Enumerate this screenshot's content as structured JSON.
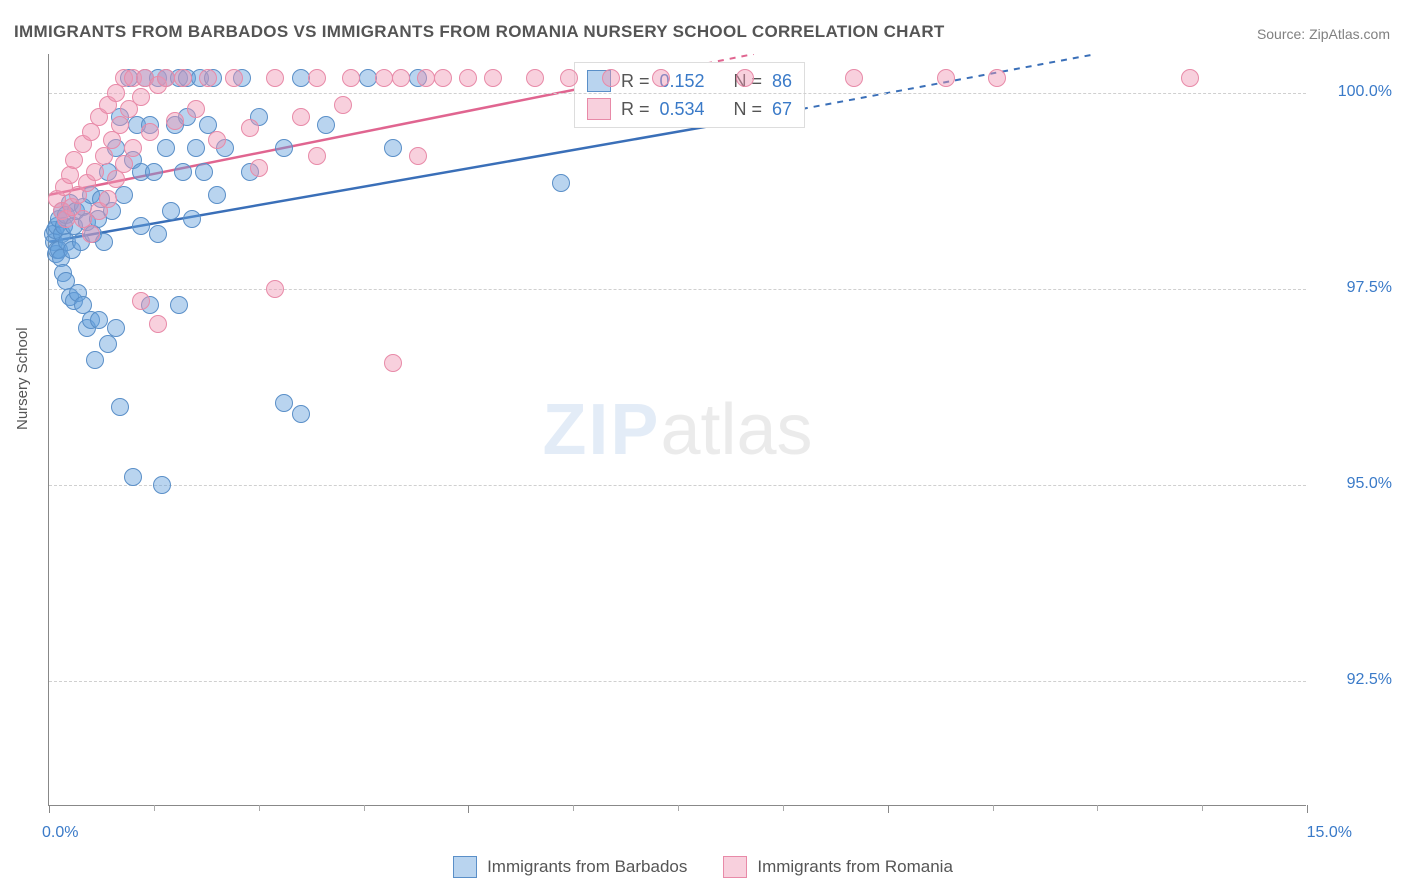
{
  "chart": {
    "type": "scatter",
    "title": "IMMIGRANTS FROM BARBADOS VS IMMIGRANTS FROM ROMANIA NURSERY SCHOOL CORRELATION CHART",
    "source": "Source: ZipAtlas.com",
    "ylabel": "Nursery School",
    "watermark_zip": "ZIP",
    "watermark_atlas": "atlas",
    "background_color": "#ffffff",
    "grid_color": "#d0d0d0",
    "axis_color": "#888888",
    "xlim": [
      0.0,
      15.0
    ],
    "ylim": [
      90.9,
      100.5
    ],
    "xlim_labels": [
      "0.0%",
      "15.0%"
    ],
    "yticks": [
      92.5,
      95.0,
      97.5,
      100.0
    ],
    "ytick_labels": [
      "92.5%",
      "95.0%",
      "97.5%",
      "100.0%"
    ],
    "xtick_positions": [
      0,
      1.25,
      2.5,
      3.75,
      5.0,
      6.25,
      7.5,
      8.75,
      10.0,
      11.25,
      12.5,
      13.75,
      15.0
    ],
    "xtick_major": [
      0,
      5.0,
      10.0,
      15.0
    ],
    "series": [
      {
        "name": "Immigrants from Barbados",
        "fill_color": "rgba(100,160,220,0.45)",
        "stroke_color": "#5a8fc8",
        "line_color": "#3a6fb8",
        "R": "0.152",
        "N": "86",
        "trend": {
          "x1": 0.0,
          "y1": 98.1,
          "x2": 8.0,
          "y2": 99.6,
          "x2_ext": 15.0,
          "y2_ext": 101.0
        },
        "points": [
          [
            0.05,
            98.2
          ],
          [
            0.06,
            98.1
          ],
          [
            0.07,
            98.25
          ],
          [
            0.08,
            97.95
          ],
          [
            0.1,
            98.0
          ],
          [
            0.1,
            98.3
          ],
          [
            0.12,
            98.4
          ],
          [
            0.12,
            98.0
          ],
          [
            0.14,
            97.9
          ],
          [
            0.15,
            98.2
          ],
          [
            0.15,
            98.5
          ],
          [
            0.17,
            97.7
          ],
          [
            0.18,
            98.3
          ],
          [
            0.2,
            98.45
          ],
          [
            0.2,
            97.6
          ],
          [
            0.22,
            98.1
          ],
          [
            0.25,
            98.6
          ],
          [
            0.25,
            97.4
          ],
          [
            0.27,
            98.0
          ],
          [
            0.3,
            98.3
          ],
          [
            0.3,
            97.35
          ],
          [
            0.32,
            98.5
          ],
          [
            0.35,
            97.45
          ],
          [
            0.38,
            98.1
          ],
          [
            0.4,
            97.3
          ],
          [
            0.4,
            98.55
          ],
          [
            0.45,
            97.0
          ],
          [
            0.45,
            98.35
          ],
          [
            0.5,
            97.1
          ],
          [
            0.5,
            98.7
          ],
          [
            0.52,
            98.2
          ],
          [
            0.55,
            96.6
          ],
          [
            0.58,
            98.4
          ],
          [
            0.6,
            97.1
          ],
          [
            0.62,
            98.65
          ],
          [
            0.65,
            98.1
          ],
          [
            0.7,
            99.0
          ],
          [
            0.7,
            96.8
          ],
          [
            0.75,
            98.5
          ],
          [
            0.8,
            99.3
          ],
          [
            0.8,
            97.0
          ],
          [
            0.85,
            99.7
          ],
          [
            0.85,
            96.0
          ],
          [
            0.9,
            98.7
          ],
          [
            0.95,
            100.2
          ],
          [
            1.0,
            99.15
          ],
          [
            1.0,
            95.1
          ],
          [
            1.05,
            99.6
          ],
          [
            1.1,
            98.3
          ],
          [
            1.1,
            99.0
          ],
          [
            1.15,
            100.2
          ],
          [
            1.2,
            97.3
          ],
          [
            1.2,
            99.6
          ],
          [
            1.25,
            99.0
          ],
          [
            1.3,
            100.2
          ],
          [
            1.3,
            98.2
          ],
          [
            1.35,
            95.0
          ],
          [
            1.4,
            99.3
          ],
          [
            1.4,
            100.2
          ],
          [
            1.45,
            98.5
          ],
          [
            1.5,
            99.6
          ],
          [
            1.55,
            100.2
          ],
          [
            1.55,
            97.3
          ],
          [
            1.6,
            99.0
          ],
          [
            1.65,
            99.7
          ],
          [
            1.65,
            100.2
          ],
          [
            1.7,
            98.4
          ],
          [
            1.75,
            99.3
          ],
          [
            1.8,
            100.2
          ],
          [
            1.85,
            99.0
          ],
          [
            1.9,
            99.6
          ],
          [
            1.95,
            100.2
          ],
          [
            2.0,
            98.7
          ],
          [
            2.1,
            99.3
          ],
          [
            2.3,
            100.2
          ],
          [
            2.4,
            99.0
          ],
          [
            2.5,
            99.7
          ],
          [
            2.8,
            99.3
          ],
          [
            2.8,
            96.05
          ],
          [
            3.0,
            95.9
          ],
          [
            3.0,
            100.2
          ],
          [
            3.3,
            99.6
          ],
          [
            3.8,
            100.2
          ],
          [
            4.1,
            99.3
          ],
          [
            4.4,
            100.2
          ],
          [
            6.1,
            98.85
          ]
        ]
      },
      {
        "name": "Immigrants from Romania",
        "fill_color": "rgba(240,150,180,0.45)",
        "stroke_color": "#e88aa8",
        "line_color": "#e06590",
        "R": "0.534",
        "N": "67",
        "trend": {
          "x1": 0.0,
          "y1": 98.7,
          "x2": 7.0,
          "y2": 100.2,
          "x2_ext": 15.0,
          "y2_ext": 101.9
        },
        "points": [
          [
            0.1,
            98.65
          ],
          [
            0.15,
            98.5
          ],
          [
            0.18,
            98.8
          ],
          [
            0.2,
            98.4
          ],
          [
            0.25,
            98.95
          ],
          [
            0.28,
            98.55
          ],
          [
            0.3,
            99.15
          ],
          [
            0.35,
            98.7
          ],
          [
            0.4,
            99.35
          ],
          [
            0.4,
            98.4
          ],
          [
            0.45,
            98.85
          ],
          [
            0.5,
            99.5
          ],
          [
            0.5,
            98.2
          ],
          [
            0.55,
            99.0
          ],
          [
            0.6,
            99.7
          ],
          [
            0.6,
            98.5
          ],
          [
            0.65,
            99.2
          ],
          [
            0.7,
            99.85
          ],
          [
            0.7,
            98.65
          ],
          [
            0.75,
            99.4
          ],
          [
            0.8,
            100.0
          ],
          [
            0.8,
            98.9
          ],
          [
            0.85,
            99.6
          ],
          [
            0.9,
            100.2
          ],
          [
            0.9,
            99.1
          ],
          [
            0.95,
            99.8
          ],
          [
            1.0,
            100.2
          ],
          [
            1.0,
            99.3
          ],
          [
            1.1,
            97.35
          ],
          [
            1.1,
            99.95
          ],
          [
            1.15,
            100.2
          ],
          [
            1.2,
            99.5
          ],
          [
            1.3,
            97.05
          ],
          [
            1.3,
            100.1
          ],
          [
            1.4,
            100.2
          ],
          [
            1.5,
            99.65
          ],
          [
            1.6,
            100.2
          ],
          [
            1.75,
            99.8
          ],
          [
            1.9,
            100.2
          ],
          [
            2.0,
            99.4
          ],
          [
            2.2,
            100.2
          ],
          [
            2.4,
            99.55
          ],
          [
            2.5,
            99.05
          ],
          [
            2.7,
            97.5
          ],
          [
            2.7,
            100.2
          ],
          [
            3.0,
            99.7
          ],
          [
            3.2,
            99.2
          ],
          [
            3.2,
            100.2
          ],
          [
            3.5,
            99.85
          ],
          [
            3.6,
            100.2
          ],
          [
            4.0,
            100.2
          ],
          [
            4.1,
            96.55
          ],
          [
            4.2,
            100.2
          ],
          [
            4.4,
            99.2
          ],
          [
            4.5,
            100.2
          ],
          [
            4.7,
            100.2
          ],
          [
            5.0,
            100.2
          ],
          [
            5.3,
            100.2
          ],
          [
            5.8,
            100.2
          ],
          [
            6.2,
            100.2
          ],
          [
            6.7,
            100.2
          ],
          [
            7.3,
            100.2
          ],
          [
            8.3,
            100.2
          ],
          [
            9.6,
            100.2
          ],
          [
            10.7,
            100.2
          ],
          [
            11.3,
            100.2
          ],
          [
            13.6,
            100.2
          ]
        ]
      }
    ],
    "legend_labels": [
      "Immigrants from Barbados",
      "Immigrants from Romania"
    ],
    "legend_R_label": "R =",
    "legend_N_label": "N ="
  }
}
